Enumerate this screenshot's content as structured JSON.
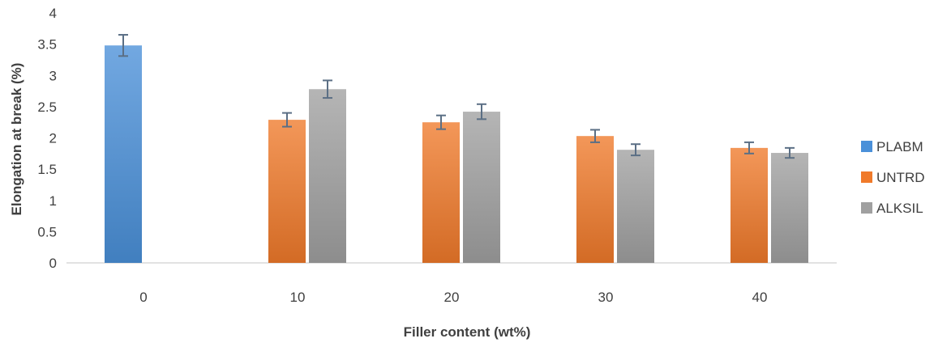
{
  "chart_data": {
    "type": "bar",
    "title": "",
    "xlabel": "Filler content (wt%)",
    "ylabel": "Elongation at break (%)",
    "ylim": [
      0,
      4
    ],
    "yticks": [
      "0",
      "0.5",
      "1",
      "1.5",
      "2",
      "2.5",
      "3",
      "3.5",
      "4"
    ],
    "categories": [
      "0",
      "10",
      "20",
      "30",
      "40"
    ],
    "series": [
      {
        "name": "PLABM",
        "color": "#4A90D9",
        "values": [
          3.48,
          null,
          null,
          null,
          null
        ],
        "errors": [
          0.17,
          null,
          null,
          null,
          null
        ]
      },
      {
        "name": "UNTRD",
        "color": "#F07A2A",
        "values": [
          null,
          2.29,
          2.25,
          2.03,
          1.84
        ],
        "errors": [
          null,
          0.11,
          0.11,
          0.1,
          0.09
        ]
      },
      {
        "name": "ALKSIL",
        "color": "#A0A0A0",
        "values": [
          null,
          2.78,
          2.42,
          1.81,
          1.76
        ],
        "errors": [
          null,
          0.14,
          0.12,
          0.09,
          0.08
        ]
      }
    ],
    "grid": false,
    "legend_position": "right"
  }
}
